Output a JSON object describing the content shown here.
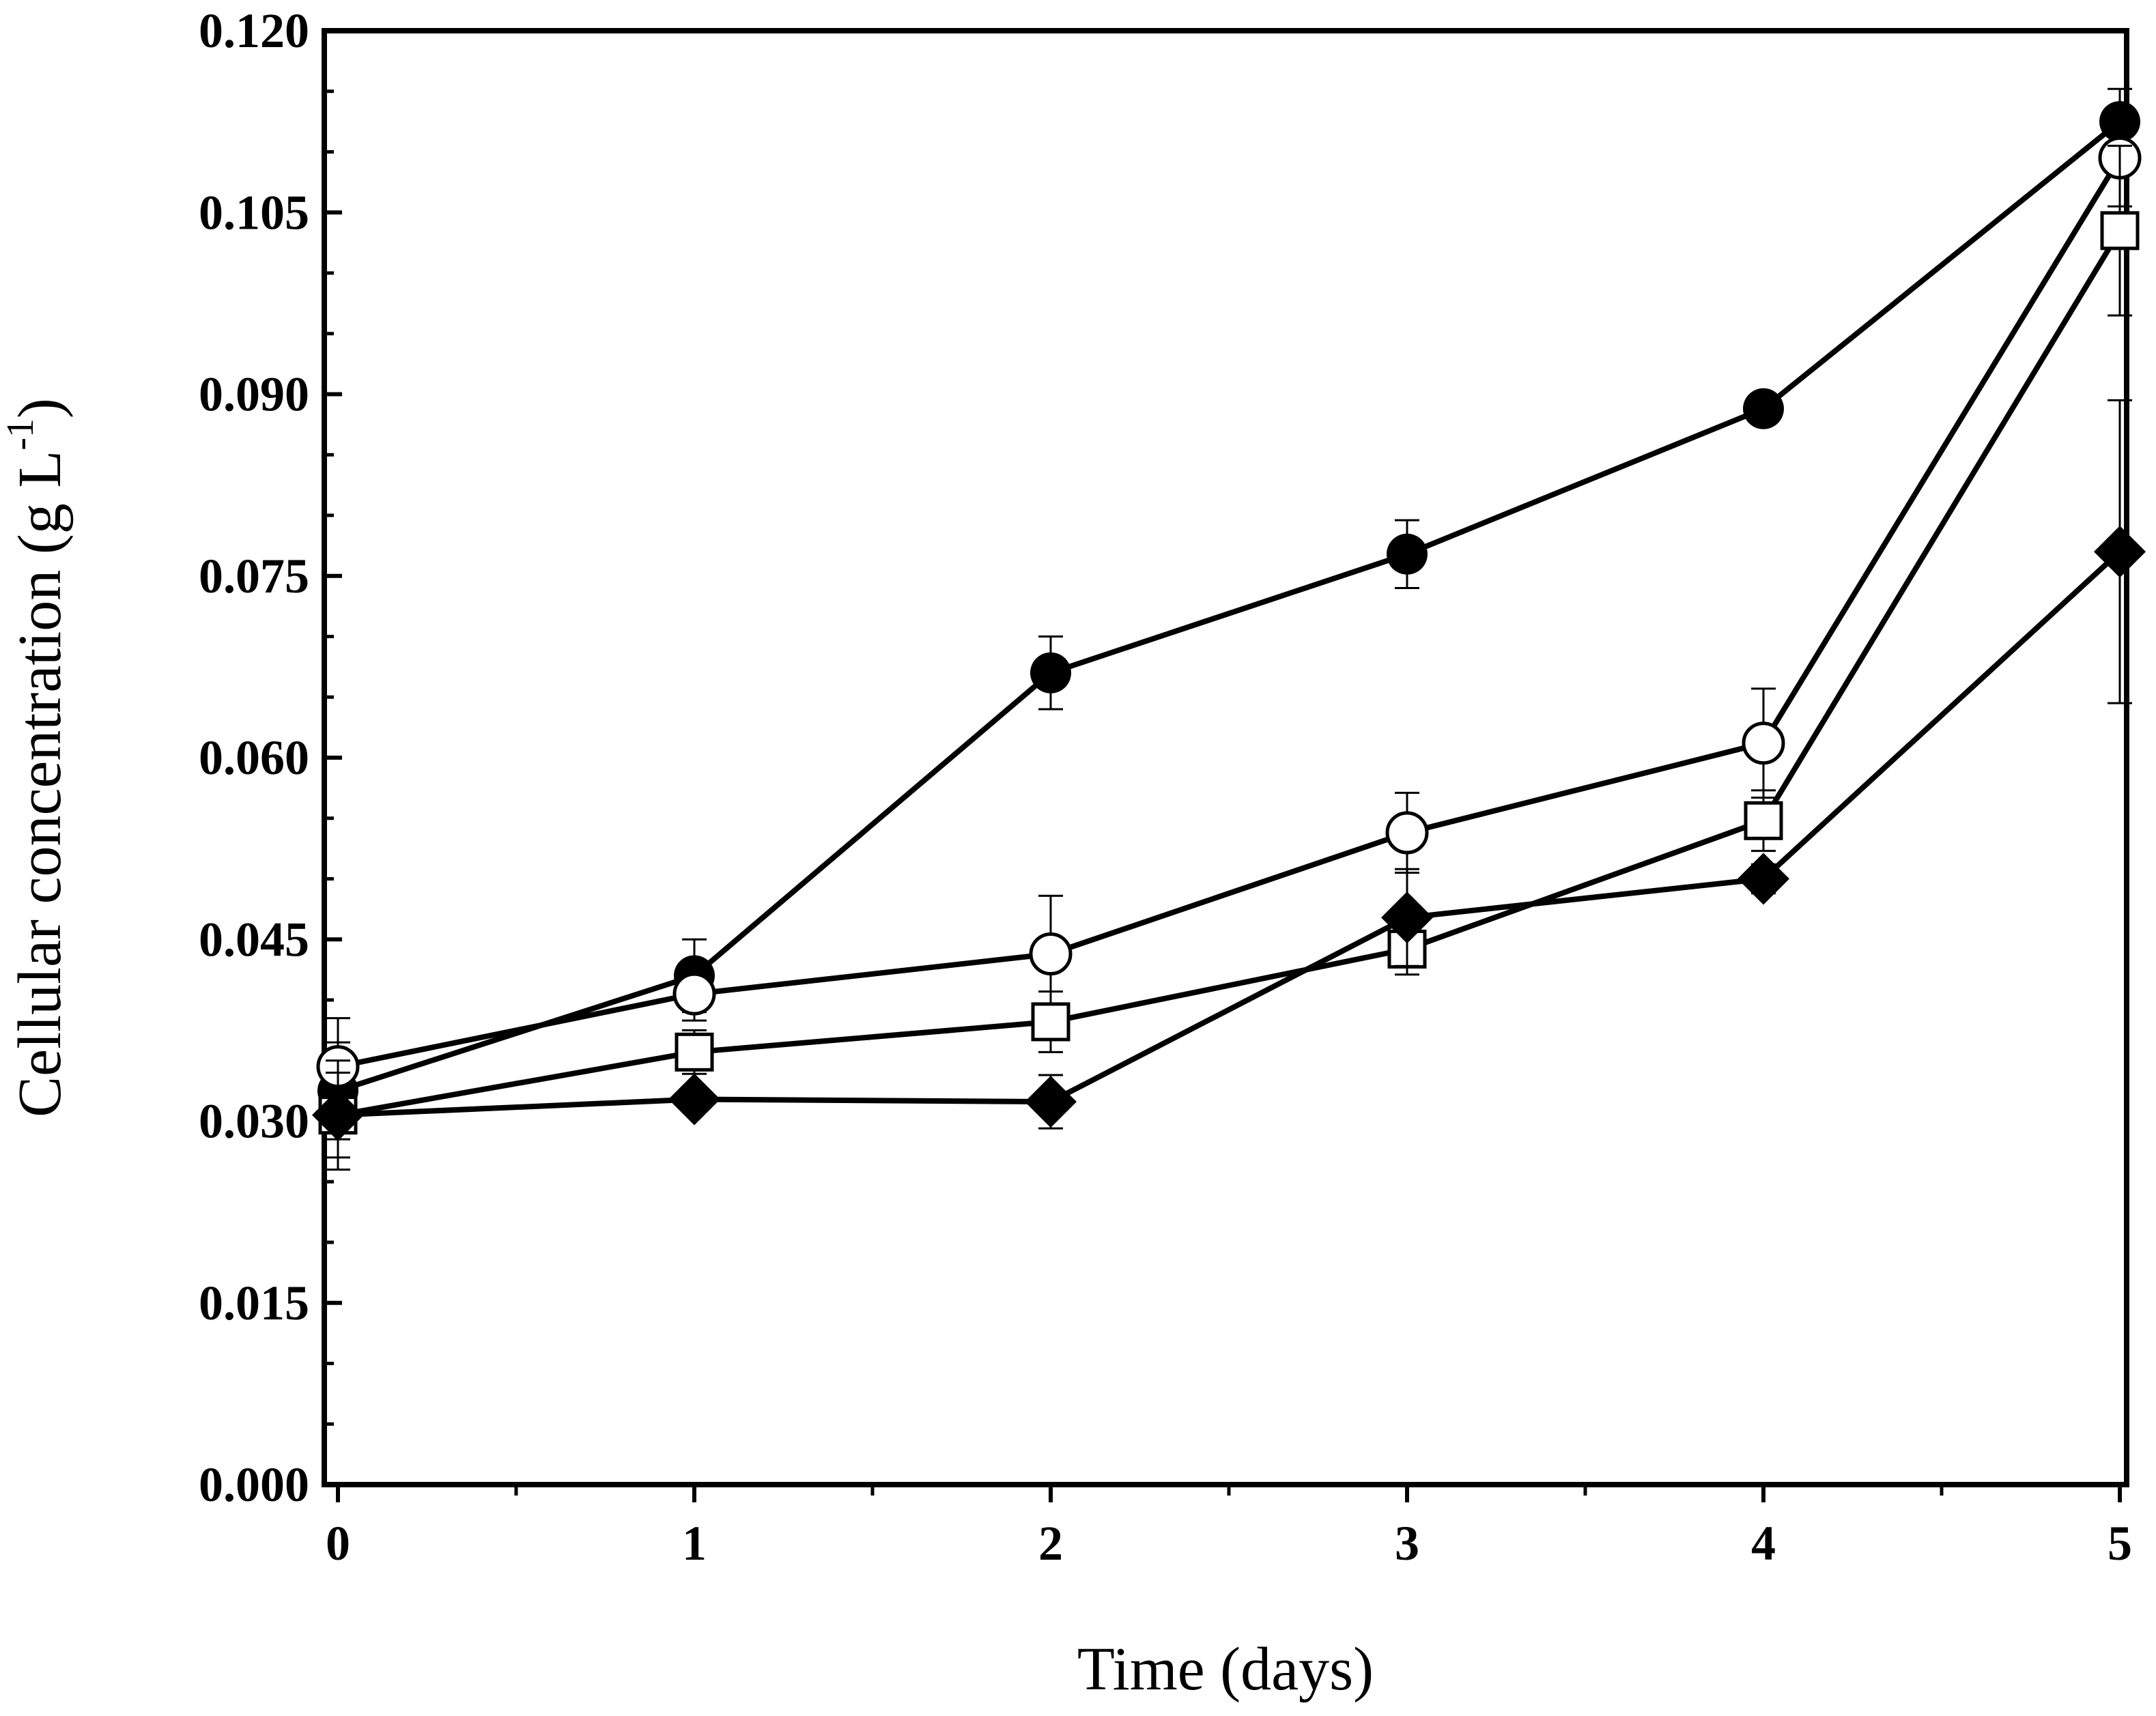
{
  "chart_data": {
    "type": "line",
    "title": "",
    "xlabel": "Time (days)",
    "ylabel": "Cellular concentration (g L",
    "ylabel_sup": "-1",
    "ylabel_close": ")",
    "xlim": [
      0,
      5
    ],
    "ylim": [
      0,
      0.12
    ],
    "x_ticks": [
      "0",
      "1",
      "2",
      "3",
      "4",
      "5"
    ],
    "y_ticks": [
      "0.000",
      "0.015",
      "0.030",
      "0.045",
      "0.060",
      "0.075",
      "0.090",
      "0.105",
      "0.120"
    ],
    "grid": false,
    "legend": "none",
    "series": [
      {
        "name": "filled-circle",
        "marker": "filled-circle",
        "x": [
          0,
          1,
          2,
          3,
          4,
          5
        ],
        "values": [
          0.0325,
          0.042,
          0.067,
          0.0768,
          0.0888,
          0.1125
        ],
        "errors": [
          0.004,
          0.003,
          0.003,
          0.0028,
          0.0007,
          0.0027
        ]
      },
      {
        "name": "open-circle",
        "marker": "open-circle",
        "x": [
          0,
          1,
          2,
          3,
          4,
          5
        ],
        "values": [
          0.0345,
          0.0405,
          0.0438,
          0.0538,
          0.0612,
          0.1095
        ],
        "errors": [
          0.004,
          0.0022,
          0.0048,
          0.0033,
          0.0045,
          0.004
        ]
      },
      {
        "name": "open-square",
        "marker": "open-square",
        "x": [
          0,
          1,
          2,
          3,
          4,
          5
        ],
        "values": [
          0.0305,
          0.0357,
          0.0382,
          0.0442,
          0.0548,
          0.1035
        ],
        "errors": [
          0.0035,
          0.0018,
          0.0025,
          0.0021,
          0.0025,
          0.007
        ]
      },
      {
        "name": "filled-diamond",
        "marker": "filled-diamond",
        "x": [
          0,
          1,
          2,
          3,
          4,
          5
        ],
        "values": [
          0.0305,
          0.0318,
          0.0316,
          0.0468,
          0.05,
          0.077
        ],
        "errors": [
          0.0045,
          0.0008,
          0.0022,
          0.004,
          0.0012,
          0.0125
        ]
      }
    ]
  }
}
